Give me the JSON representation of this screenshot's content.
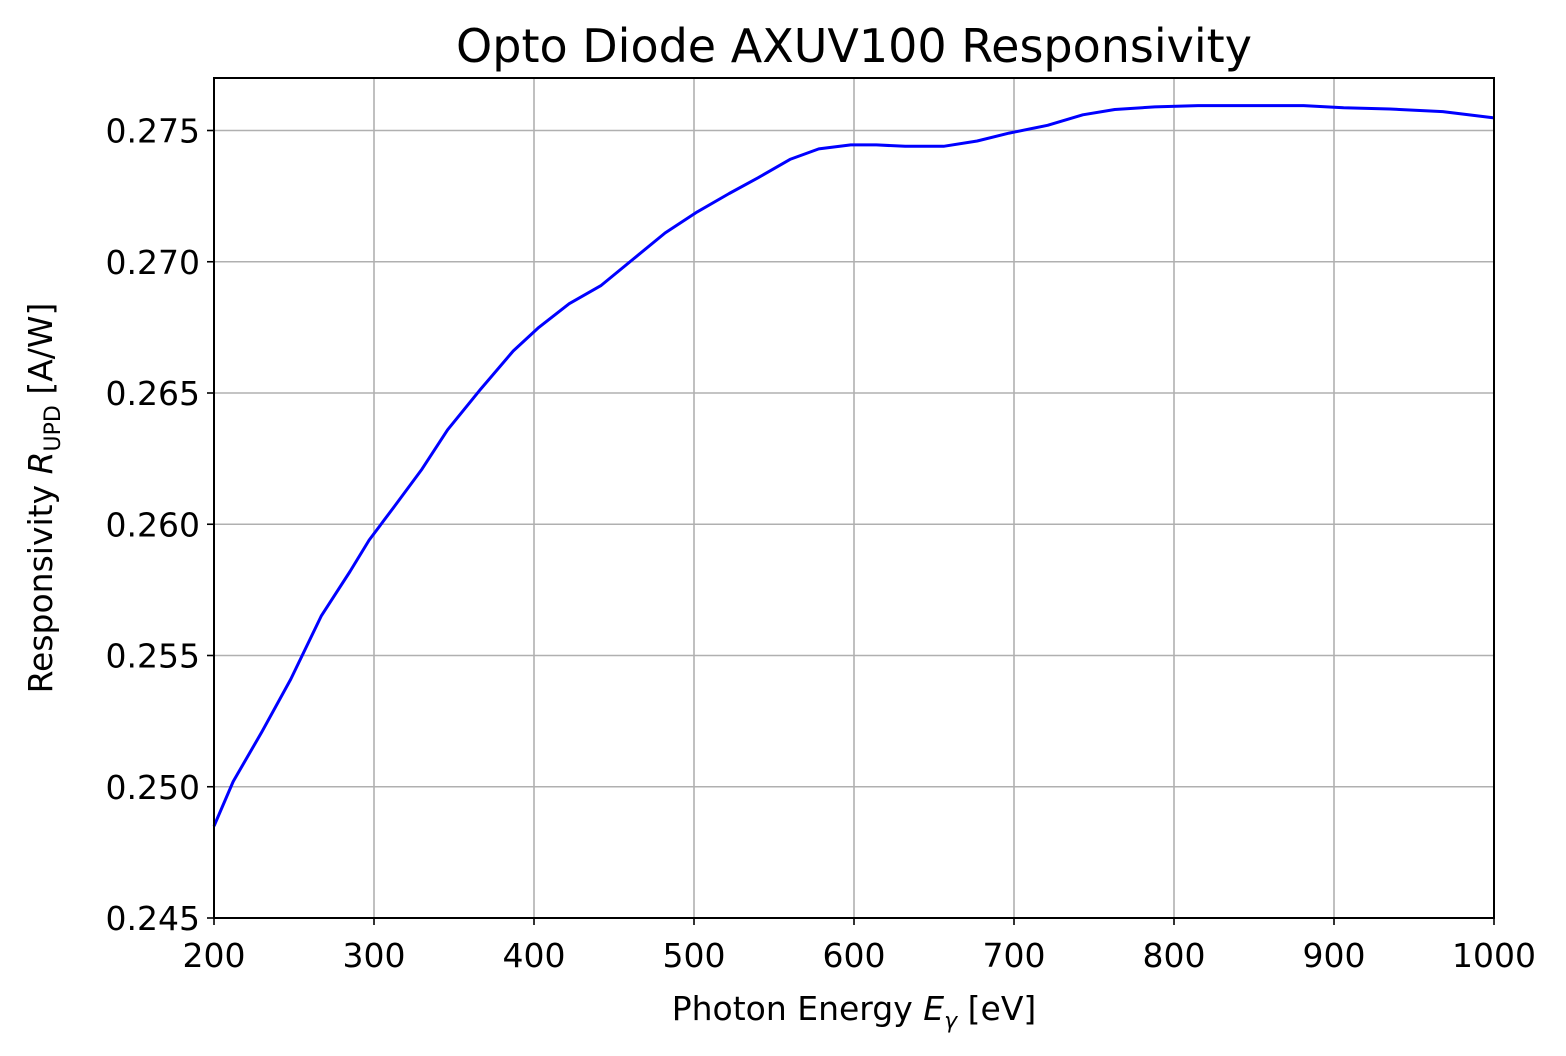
{
  "chart_data": {
    "type": "line",
    "title": "Opto Diode AXUV100 Responsivity",
    "xlabel": {
      "prefix": "Photon Energy ",
      "symbol": "E",
      "subscript": "γ",
      "suffix": " [eV]"
    },
    "ylabel": {
      "prefix": "Responsivity ",
      "symbol": "R",
      "subscript": "UPD",
      "suffix": " [A/W]"
    },
    "xlim": [
      200,
      1000
    ],
    "ylim": [
      0.245,
      0.277
    ],
    "xticks": [
      200,
      300,
      400,
      500,
      600,
      700,
      800,
      900,
      1000
    ],
    "xtick_labels": [
      "200",
      "300",
      "400",
      "500",
      "600",
      "700",
      "800",
      "900",
      "1000"
    ],
    "yticks": [
      0.245,
      0.25,
      0.255,
      0.26,
      0.265,
      0.27,
      0.275
    ],
    "ytick_labels": [
      "0.245",
      "0.250",
      "0.255",
      "0.260",
      "0.265",
      "0.270",
      "0.275"
    ],
    "grid": true,
    "series": [
      {
        "color": "#0000ff",
        "x": [
          200,
          212,
          230,
          248,
          267,
          285,
          297,
          313,
          330,
          346,
          366,
          387,
          403,
          422,
          442,
          462,
          482,
          502,
          522,
          540,
          560,
          578,
          598,
          614,
          632,
          656,
          677,
          697,
          721,
          743,
          763,
          788,
          815,
          850,
          881,
          906,
          935,
          968,
          1000
        ],
        "y": [
          0.2485,
          0.2502,
          0.2521,
          0.2541,
          0.2565,
          0.2582,
          0.2594,
          0.2607,
          0.2621,
          0.2636,
          0.2651,
          0.2666,
          0.2675,
          0.2684,
          0.2691,
          0.2701,
          0.2711,
          0.2719,
          0.2726,
          0.2732,
          0.2739,
          0.2743,
          0.27445,
          0.27445,
          0.2744,
          0.2744,
          0.2746,
          0.2749,
          0.2752,
          0.2756,
          0.2758,
          0.2759,
          0.27595,
          0.27595,
          0.27595,
          0.27587,
          0.27582,
          0.27572,
          0.27548
        ]
      }
    ]
  }
}
